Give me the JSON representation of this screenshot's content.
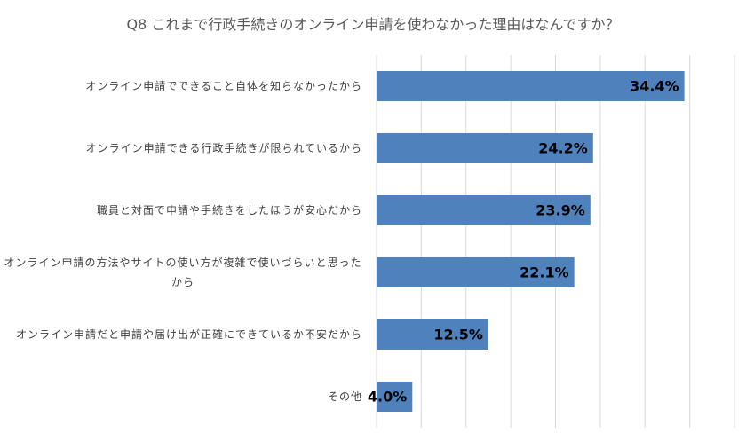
{
  "chart_data": {
    "type": "hbar",
    "title": "Q8 これまで行政手続きのオンライン申請を使わなかった理由はなんですか？",
    "categories": [
      "オンライン申請でできること自体を知らなかったから",
      "オンライン申請できる行政手続きが限られているから",
      "職員と対面で申請や手続きをしたほうが安心だから",
      "オンライン申請の方法やサイトの使い方が複雑で使いづらいと思ったから",
      "オンライン申請だと申請や届け出が正確にできているか不安だから",
      "その他"
    ],
    "values": [
      34.4,
      24.2,
      23.9,
      22.1,
      12.5,
      4.0
    ],
    "value_labels": [
      "34.4%",
      "24.2%",
      "23.9%",
      "22.1%",
      "12.5%",
      "4.0%"
    ],
    "color": "#4f81bd",
    "xlim": [
      0,
      40
    ],
    "xticks": [
      0,
      5,
      10,
      15,
      20,
      25,
      30,
      35,
      40
    ],
    "grid": true
  }
}
